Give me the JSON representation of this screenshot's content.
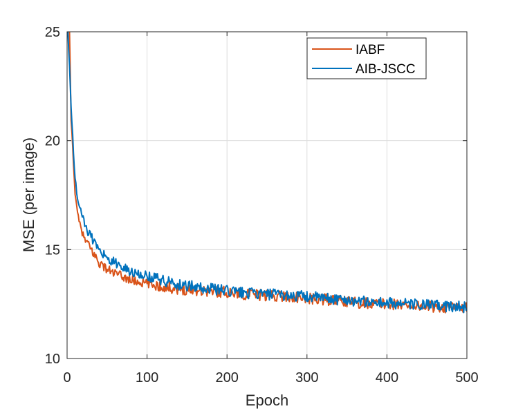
{
  "chart_data": {
    "type": "line",
    "title": "",
    "xlabel": "Epoch",
    "ylabel": "MSE (per image)",
    "xlim": [
      0,
      500
    ],
    "ylim": [
      10,
      25
    ],
    "xticks": [
      0,
      100,
      200,
      300,
      400,
      500
    ],
    "yticks": [
      10,
      15,
      20,
      25
    ],
    "xtick_labels": [
      "0",
      "100",
      "200",
      "300",
      "400",
      "500"
    ],
    "ytick_labels": [
      "10",
      "15",
      "20",
      "25"
    ],
    "grid": true,
    "legend_position": "top-right",
    "series": [
      {
        "name": "IABF",
        "color": "#D95319",
        "x": [
          3,
          5,
          8,
          10,
          12,
          15,
          18,
          20,
          25,
          30,
          35,
          40,
          50,
          60,
          70,
          80,
          90,
          100,
          120,
          140,
          160,
          180,
          200,
          225,
          250,
          275,
          300,
          325,
          350,
          375,
          400,
          425,
          450,
          475,
          500
        ],
        "y": [
          25.0,
          21.0,
          19.0,
          17.6,
          16.9,
          16.3,
          15.9,
          15.6,
          15.3,
          15.0,
          14.7,
          14.4,
          14.1,
          13.9,
          13.75,
          13.6,
          13.5,
          13.45,
          13.3,
          13.2,
          13.15,
          13.1,
          13.05,
          12.95,
          12.9,
          12.85,
          12.75,
          12.7,
          12.6,
          12.55,
          12.5,
          12.45,
          12.4,
          12.35,
          12.3
        ]
      },
      {
        "name": "AIB-JSCC",
        "color": "#0072BD",
        "x": [
          1,
          3,
          5,
          8,
          10,
          12,
          15,
          18,
          20,
          25,
          30,
          35,
          40,
          50,
          60,
          70,
          80,
          90,
          100,
          120,
          140,
          160,
          180,
          200,
          225,
          250,
          275,
          300,
          325,
          350,
          375,
          400,
          425,
          450,
          475,
          500
        ],
        "y": [
          25.0,
          23.5,
          21.5,
          19.5,
          18.3,
          17.6,
          17.0,
          16.7,
          16.4,
          15.9,
          15.6,
          15.3,
          15.0,
          14.6,
          14.4,
          14.2,
          14.0,
          13.9,
          13.8,
          13.6,
          13.4,
          13.3,
          13.2,
          13.1,
          13.0,
          12.95,
          12.9,
          12.85,
          12.75,
          12.7,
          12.6,
          12.55,
          12.5,
          12.45,
          12.4,
          12.35
        ]
      }
    ]
  }
}
